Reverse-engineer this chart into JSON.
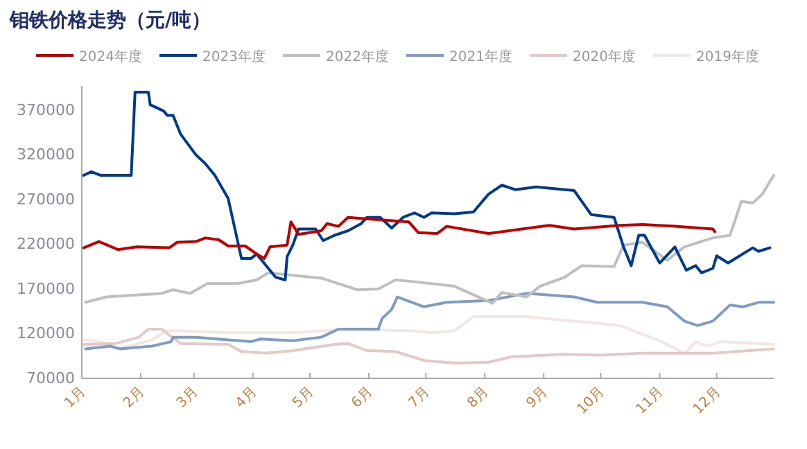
{
  "chart_data": {
    "type": "line",
    "title": "钼铁价格走势（元/吨）",
    "legend": "top",
    "grid": false,
    "marker": "none",
    "xlim": [
      "--01-01",
      "--12-31"
    ],
    "ylim": [
      70000,
      397000
    ],
    "xticks": [
      {
        "value": "--01-01",
        "label": "1月"
      },
      {
        "value": "--02-01",
        "label": "2月"
      },
      {
        "value": "--03-01",
        "label": "3月"
      },
      {
        "value": "--04-01",
        "label": "4月"
      },
      {
        "value": "--05-01",
        "label": "5月"
      },
      {
        "value": "--06-01",
        "label": "6月"
      },
      {
        "value": "--07-01",
        "label": "7月"
      },
      {
        "value": "--08-01",
        "label": "8月"
      },
      {
        "value": "--09-01",
        "label": "9月"
      },
      {
        "value": "--10-01",
        "label": "10月"
      },
      {
        "value": "--11-01",
        "label": "11月"
      },
      {
        "value": "--12-01",
        "label": "12月"
      }
    ],
    "yticks": [
      70000,
      120000,
      170000,
      220000,
      270000,
      320000,
      370000
    ],
    "series": [
      {
        "name": "2024年度",
        "color": "#c00000",
        "x": [
          "--01-02",
          "--01-10",
          "--01-20",
          "--01-30",
          "--02-16",
          "--02-20",
          "--03-02",
          "--03-07",
          "--03-14",
          "--03-19",
          "--03-28",
          "--04-03",
          "--04-07",
          "--04-10",
          "--04-19",
          "--04-21",
          "--04-25",
          "--05-07",
          "--05-10",
          "--05-16",
          "--05-21",
          "--06-22",
          "--06-27",
          "--07-07",
          "--07-12",
          "--08-03",
          "--09-04",
          "--09-17",
          "--10-11",
          "--10-23",
          "--11-09",
          "--11-29",
          "--11-30"
        ],
        "values": [
          216000,
          223000,
          214000,
          217000,
          216000,
          222000,
          223000,
          227000,
          225000,
          218000,
          218000,
          209000,
          204000,
          217000,
          219000,
          245000,
          231000,
          235000,
          243000,
          240000,
          250000,
          245000,
          233000,
          232000,
          240000,
          232000,
          241000,
          237000,
          241000,
          242000,
          240000,
          237000,
          234000
        ]
      },
      {
        "name": "2023年度",
        "color": "#003a8c",
        "x": [
          "--01-02",
          "--01-06",
          "--01-11",
          "--01-27",
          "--01-29",
          "--02-05",
          "--02-06",
          "--02-13",
          "--02-15",
          "--02-18",
          "--02-22",
          "--03-02",
          "--03-07",
          "--03-12",
          "--03-19",
          "--03-26",
          "--03-31",
          "--04-03",
          "--04-08",
          "--04-13",
          "--04-18",
          "--04-19",
          "--04-22",
          "--04-25",
          "--05-04",
          "--05-08",
          "--05-14",
          "--05-21",
          "--05-28",
          "--05-31",
          "--06-07",
          "--06-13",
          "--06-19",
          "--06-25",
          "--06-30",
          "--07-04",
          "--07-16",
          "--07-26",
          "--08-03",
          "--08-10",
          "--08-17",
          "--08-28",
          "--09-17",
          "--09-26",
          "--10-08",
          "--10-13",
          "--10-17",
          "--10-21",
          "--10-24",
          "--11-01",
          "--11-09",
          "--11-15",
          "--11-20",
          "--11-23",
          "--11-29",
          "--12-01",
          "--12-07",
          "--12-20",
          "--12-23",
          "--12-29"
        ],
        "values": [
          297000,
          301000,
          297000,
          297000,
          390000,
          390000,
          376000,
          369000,
          364000,
          364000,
          343000,
          320000,
          310000,
          297000,
          271000,
          204000,
          204000,
          209000,
          196000,
          183000,
          180000,
          206000,
          219000,
          237000,
          237000,
          224000,
          230000,
          235000,
          243000,
          250000,
          250000,
          238000,
          250000,
          255000,
          250000,
          255000,
          254000,
          256000,
          276000,
          286000,
          281000,
          284000,
          280000,
          253000,
          250000,
          217000,
          196000,
          230000,
          230000,
          199000,
          217000,
          191000,
          196000,
          188000,
          193000,
          207000,
          199000,
          216000,
          212000,
          216000
        ]
      },
      {
        "name": "2022年度",
        "color": "#bfbfbf",
        "x": [
          "--01-03",
          "--01-14",
          "--02-12",
          "--02-18",
          "--02-27",
          "--03-08",
          "--03-24",
          "--04-03",
          "--04-09",
          "--04-18",
          "--05-07",
          "--05-26",
          "--06-06",
          "--06-15",
          "--06-25",
          "--07-16",
          "--08-05",
          "--08-10",
          "--08-23",
          "--08-30",
          "--09-12",
          "--09-21",
          "--10-08",
          "--10-13",
          "--10-23",
          "--11-05",
          "--11-14",
          "--11-29",
          "--12-08",
          "--12-14",
          "--12-20",
          "--12-25",
          "--12-31"
        ],
        "values": [
          155000,
          161000,
          165000,
          169000,
          165000,
          176000,
          176000,
          180000,
          188000,
          186000,
          182000,
          169000,
          170000,
          180000,
          178000,
          173000,
          154000,
          166000,
          161000,
          173000,
          183000,
          196000,
          195000,
          219000,
          222000,
          202000,
          217000,
          227000,
          230000,
          268000,
          266000,
          276000,
          297000
        ]
      },
      {
        "name": "2021年度",
        "color": "#7f9cc8",
        "x": [
          "--01-03",
          "--01-16",
          "--01-21",
          "--02-07",
          "--02-17",
          "--02-18",
          "--03-02",
          "--03-19",
          "--03-31",
          "--04-05",
          "--04-22",
          "--05-07",
          "--05-16",
          "--06-06",
          "--06-08",
          "--06-13",
          "--06-16",
          "--06-25",
          "--06-30",
          "--07-12",
          "--08-03",
          "--08-23",
          "--09-17",
          "--09-29",
          "--10-23",
          "--11-05",
          "--11-14",
          "--11-21",
          "--11-29",
          "--12-08",
          "--12-15",
          "--12-23",
          "--12-31"
        ],
        "values": [
          103000,
          106000,
          103000,
          106000,
          111000,
          116000,
          116000,
          113000,
          111000,
          114000,
          112000,
          116000,
          125000,
          125000,
          137000,
          147000,
          161000,
          154000,
          150000,
          155000,
          157000,
          165000,
          161000,
          155000,
          155000,
          150000,
          134000,
          129000,
          134000,
          152000,
          150000,
          155000,
          155000
        ]
      },
      {
        "name": "2020年度",
        "color": "#e6c8c8",
        "x": [
          "--01-02",
          "--01-19",
          "--01-31",
          "--02-05",
          "--02-12",
          "--02-22",
          "--03-19",
          "--03-26",
          "--04-08",
          "--04-22",
          "--05-14",
          "--05-21",
          "--05-31",
          "--06-15",
          "--06-30",
          "--07-16",
          "--08-03",
          "--08-15",
          "--09-12",
          "--10-01",
          "--10-23",
          "--11-29",
          "--12-31"
        ],
        "values": [
          108000,
          109000,
          116000,
          125000,
          125000,
          109000,
          108000,
          100000,
          98000,
          101000,
          108000,
          109000,
          101000,
          100000,
          90000,
          87000,
          88000,
          94000,
          97000,
          96000,
          98000,
          98000,
          103000
        ]
      },
      {
        "name": "2019年度",
        "color": "#f2e6e6",
        "x": [
          "--01-02",
          "--01-11",
          "--01-19",
          "--01-26",
          "--02-07",
          "--02-14",
          "--02-22",
          "--03-19",
          "--04-22",
          "--05-21",
          "--06-25",
          "--07-04",
          "--07-16",
          "--07-26",
          "--08-23",
          "--09-17",
          "--10-11",
          "--10-31",
          "--11-14",
          "--11-20",
          "--11-26",
          "--12-03",
          "--12-31"
        ],
        "values": [
          113000,
          111000,
          103000,
          106000,
          113000,
          123000,
          123000,
          121000,
          121000,
          125000,
          123000,
          121000,
          123000,
          139000,
          139000,
          134000,
          129000,
          113000,
          98000,
          111000,
          106000,
          111000,
          108000
        ]
      }
    ]
  }
}
